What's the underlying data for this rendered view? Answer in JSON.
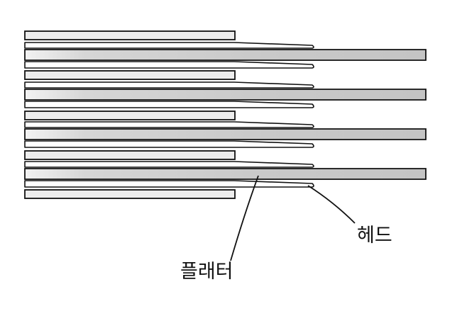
{
  "labels": {
    "head": "헤드",
    "platter": "플래터"
  },
  "colors": {
    "outline": "#111111",
    "platter_light": "#ededed",
    "platter_gradient_mid": "#d6d6d6",
    "platter_gradient_dark": "#c4c4c4",
    "arm": "#8a8a8a",
    "background": "#ffffff"
  }
}
